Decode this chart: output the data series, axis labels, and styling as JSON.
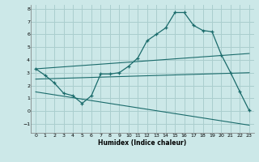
{
  "xlabel": "Humidex (Indice chaleur)",
  "bg_color": "#cce8e8",
  "grid_color": "#aacece",
  "line_color": "#1a6b6b",
  "xlim": [
    -0.5,
    23.5
  ],
  "ylim": [
    -1.7,
    8.3
  ],
  "yticks": [
    -1,
    0,
    1,
    2,
    3,
    4,
    5,
    6,
    7,
    8
  ],
  "xticks": [
    0,
    1,
    2,
    3,
    4,
    5,
    6,
    7,
    8,
    9,
    10,
    11,
    12,
    13,
    14,
    15,
    16,
    17,
    18,
    19,
    20,
    21,
    22,
    23
  ],
  "line1_x": [
    0,
    1,
    2,
    3,
    4,
    5,
    6,
    7,
    8,
    9,
    10,
    11,
    12,
    13,
    14,
    15,
    16,
    17,
    18,
    19,
    20,
    21,
    22,
    23
  ],
  "line1_y": [
    3.3,
    2.8,
    2.2,
    1.4,
    1.2,
    0.6,
    1.2,
    2.9,
    2.9,
    3.0,
    3.5,
    4.15,
    5.5,
    6.0,
    6.5,
    7.7,
    7.7,
    6.7,
    6.3,
    6.2,
    4.4,
    3.0,
    1.5,
    0.05
  ],
  "line2_x": [
    0,
    23
  ],
  "line2_y": [
    3.3,
    4.5
  ],
  "line3_x": [
    0,
    23
  ],
  "line3_y": [
    2.5,
    3.0
  ],
  "line4_x": [
    0,
    23
  ],
  "line4_y": [
    1.5,
    -1.1
  ]
}
